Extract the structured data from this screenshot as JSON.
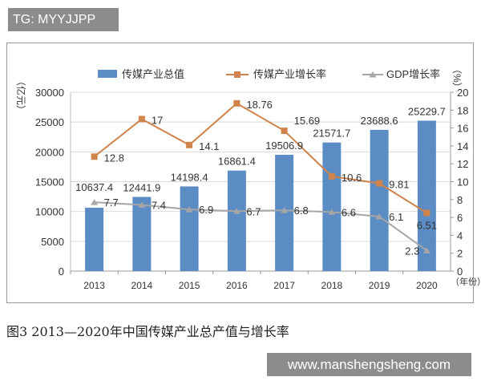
{
  "watermark_top": "TG: MYYJJPP",
  "watermark_bottom": "www.manshengsheng.com",
  "caption": "图3  2013—2020年中国传媒产业总产值与增长率",
  "chart_data": {
    "type": "bar+line",
    "categories": [
      "2013",
      "2014",
      "2015",
      "2016",
      "2017",
      "2018",
      "2019",
      "2020"
    ],
    "xlabel": "（年份）",
    "ylabel_left": "（亿元）",
    "ylabel_right": "（%）",
    "ylim_left": [
      0,
      30000
    ],
    "yticks_left": [
      0,
      5000,
      10000,
      15000,
      20000,
      25000,
      30000
    ],
    "ylim_right": [
      0,
      20
    ],
    "yticks_right": [
      0,
      2,
      4,
      6,
      8,
      10,
      12,
      14,
      16,
      18,
      20
    ],
    "grid": true,
    "legend_position": "top",
    "series": [
      {
        "name": "传媒产业总值",
        "kind": "bar",
        "axis": "left",
        "color": "#5b8cc4",
        "values": [
          10637.4,
          12441.9,
          14198.4,
          16861.4,
          19506.9,
          21571.7,
          23688.6,
          25229.7
        ],
        "labels": [
          "10637.4",
          "12441.9",
          "14198.4",
          "16861.4",
          "19506.9",
          "21571.7",
          "23688.6",
          "25229.7"
        ]
      },
      {
        "name": "传媒产业增长率",
        "kind": "line",
        "axis": "right",
        "marker": "square",
        "color": "#d0834a",
        "values": [
          12.8,
          17,
          14.1,
          18.76,
          15.69,
          10.6,
          9.81,
          6.51
        ],
        "labels": [
          "12.8",
          "17",
          "14.1",
          "18.76",
          "15.69",
          "10.6",
          "9.81",
          "6.51"
        ]
      },
      {
        "name": "GDP增长率",
        "kind": "line",
        "axis": "right",
        "marker": "triangle",
        "color": "#a6a6a6",
        "values": [
          7.7,
          7.4,
          6.9,
          6.7,
          6.8,
          6.6,
          6.1,
          2.3
        ],
        "labels": [
          "7.7",
          "7.4",
          "6.9",
          "6.7",
          "6.8",
          "6.6",
          "6.1",
          "2.3"
        ]
      }
    ]
  }
}
